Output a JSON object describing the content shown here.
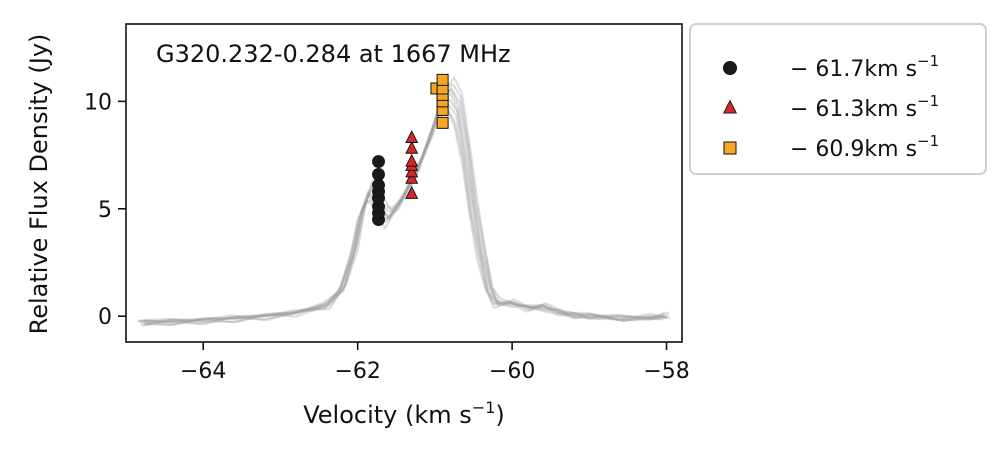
{
  "chart_data": {
    "type": "scatter",
    "title": "G320.232-0.284 at 1667 MHz",
    "xlabel": "Velocity (km s",
    "xlabel_sup": "−1",
    "xlabel_suffix": ")",
    "ylabel": "Relative Flux Density (Jy)",
    "xlim": [
      -65.0,
      -57.8
    ],
    "ylim": [
      -1.2,
      13.6
    ],
    "xticks": [
      -64,
      -62,
      -60,
      -58
    ],
    "xtick_labels": [
      "−64",
      "−62",
      "−60",
      "−58"
    ],
    "yticks": [
      0,
      5,
      10
    ],
    "ytick_labels": [
      "0",
      "5",
      "10"
    ],
    "legend_placement": "outside-right-top",
    "background_spectra": {
      "color": "#9e9e9e",
      "count": 9,
      "x": [
        -64.8,
        -64.4,
        -64.0,
        -63.6,
        -63.2,
        -62.8,
        -62.4,
        -62.2,
        -62.05,
        -61.95,
        -61.85,
        -61.78,
        -61.7,
        -61.6,
        -61.45,
        -61.3,
        -61.2,
        -61.1,
        -61.0,
        -60.9,
        -60.8,
        -60.7,
        -60.6,
        -60.5,
        -60.4,
        -60.3,
        -60.2,
        -60.0,
        -59.8,
        -59.6,
        -59.4,
        -59.2,
        -59.0,
        -58.6,
        -58.2,
        -58.0
      ],
      "y": [
        -0.3,
        -0.25,
        -0.2,
        -0.1,
        0.0,
        0.15,
        0.5,
        1.3,
        3.0,
        4.8,
        5.8,
        5.6,
        5.0,
        4.6,
        5.3,
        6.3,
        7.0,
        8.0,
        9.0,
        10.0,
        10.3,
        9.6,
        7.6,
        5.0,
        3.0,
        1.3,
        0.6,
        0.6,
        0.4,
        0.45,
        0.2,
        0.05,
        0.0,
        -0.1,
        -0.05,
        0.0
      ]
    },
    "series": [
      {
        "name": "− 61.7km s",
        "name_sup": "−1",
        "marker": "circle",
        "color": "#1a1a1a",
        "x": [
          -61.73,
          -61.73,
          -61.73,
          -61.73,
          -61.73,
          -61.73,
          -61.73,
          -61.73
        ],
        "y": [
          4.5,
          4.8,
          5.1,
          5.5,
          5.8,
          6.1,
          6.6,
          7.2
        ]
      },
      {
        "name": "− 61.3km s",
        "name_sup": "−1",
        "marker": "triangle",
        "color": "#d62728",
        "x": [
          -61.3,
          -61.3,
          -61.3,
          -61.3,
          -61.3,
          -61.3,
          -61.3
        ],
        "y": [
          5.7,
          6.4,
          6.7,
          7.0,
          7.2,
          7.8,
          8.3
        ]
      },
      {
        "name": "− 60.9km s",
        "name_sup": "−1",
        "marker": "square",
        "color": "#f5a623",
        "x": [
          -60.98,
          -60.9,
          -60.9,
          -60.9,
          -60.9,
          -60.9,
          -60.9
        ],
        "y": [
          10.6,
          9.0,
          9.6,
          10.0,
          10.3,
          10.6,
          11.0
        ]
      }
    ]
  }
}
